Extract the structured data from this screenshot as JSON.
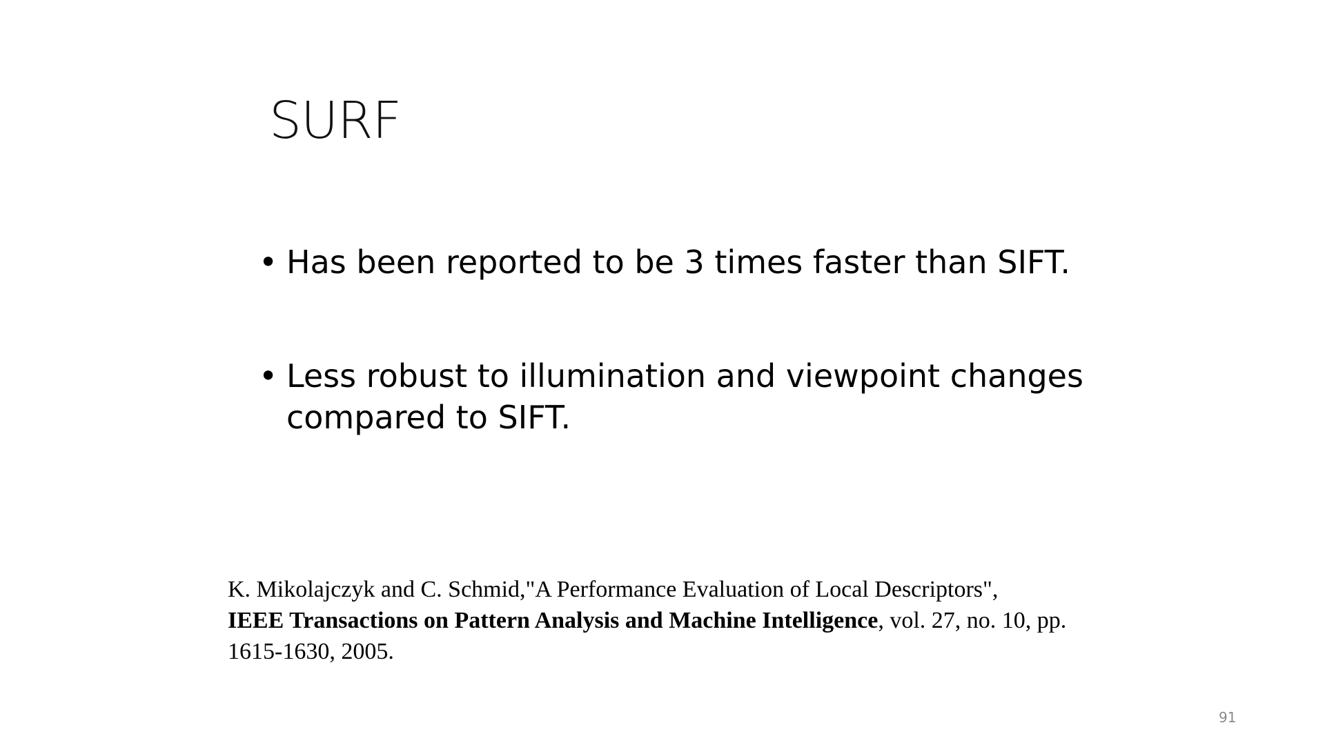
{
  "slide": {
    "title": "SURF",
    "bullets": [
      {
        "marker": "•",
        "text": "Has been reported to be 3 times faster than SIFT."
      },
      {
        "marker": "•",
        "text": "Less robust to illumination and viewpoint changes compared to SIFT."
      }
    ],
    "reference": {
      "authors_title": "K. Mikolajczyk and C. Schmid,\"A Performance Evaluation of Local Descriptors\",",
      "journal": "IEEE Transactions on Pattern Analysis and Machine Intelligence",
      "details": ", vol. 27, no. 10, pp. 1615-1630, 2005."
    },
    "page_number": "91"
  }
}
